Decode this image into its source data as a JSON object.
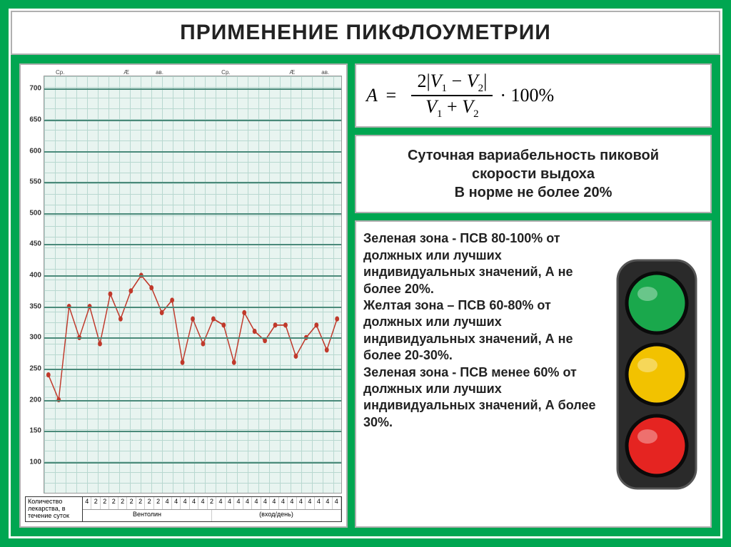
{
  "title": "ПРИМЕНЕНИЕ ПИКФЛОУМЕТРИИ",
  "formula": {
    "lhs": "A",
    "eq": "=",
    "numerator": "2|V₁ − V₂|",
    "denominator": "V₁ + V₂",
    "tail": "· 100%"
  },
  "variability_box": {
    "line1": "Суточная вариабельность пиковой",
    "line2": "скорости выдоха",
    "line3": "В норме не более 20%"
  },
  "zones_text": "Зеленая зона - ПСВ 80-100% от должных или лучших индивидуальных значений, А не более 20%.\nЖелтая зона – ПСВ 60-80% от должных или лучших индивидуальных значений, А не более 20-30%.\nЗеленая зона - ПСВ менее 60% от должных или лучших индивидуальных значений, А более 30%.",
  "traffic_light": {
    "body_color": "#2a2a2a",
    "rim_color": "#6a6a6a",
    "lights": [
      "#1aa84c",
      "#f2c200",
      "#e52421"
    ]
  },
  "chart": {
    "type": "line",
    "y_ticks": [
      100,
      150,
      200,
      250,
      300,
      350,
      400,
      450,
      500,
      550,
      600,
      650,
      700
    ],
    "ylim": [
      50,
      720
    ],
    "grid_color": "#b8d8d0",
    "major_line_color": "#4a8a7a",
    "background_color": "#e8f4f0",
    "line_color": "#c0392b",
    "marker_color": "#c0392b",
    "marker_radius": 3,
    "line_width": 1.5,
    "day_headers": [
      "Ср.",
      "",
      "Æ",
      "ав.",
      "",
      "Ср.",
      "",
      "Æ",
      "ав."
    ],
    "values": [
      240,
      200,
      350,
      300,
      350,
      290,
      370,
      330,
      375,
      400,
      380,
      340,
      360,
      260,
      330,
      290,
      330,
      320,
      260,
      340,
      310,
      295,
      320,
      320,
      270,
      300,
      320,
      280,
      330
    ],
    "bottom_label": "Количество лекарства, в течение суток",
    "bottom_row1": [
      "4",
      "2",
      "2",
      "2",
      "2",
      "2",
      "2",
      "2",
      "2",
      "4",
      "4",
      "4",
      "4",
      "4",
      "2",
      "4",
      "4",
      "4",
      "4",
      "4",
      "4",
      "4",
      "4",
      "4",
      "4",
      "4",
      "4",
      "4",
      "4"
    ],
    "bottom_row2_label": "Вентолин",
    "bottom_row2_sub": "(вход/день)"
  },
  "colors": {
    "page_bg": "#00a651",
    "panel_bg": "#ffffff",
    "panel_border": "#b0b0b0",
    "text": "#222222"
  },
  "typography": {
    "title_fontsize": 30,
    "body_fontsize": 18,
    "formula_fontsize": 26
  }
}
